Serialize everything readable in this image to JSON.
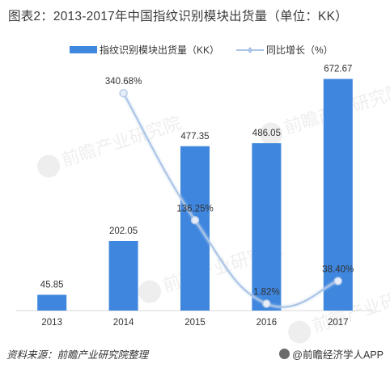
{
  "title": "图表2：2013-2017年中国指纹识别模块出货量（单位：KK）",
  "footer": {
    "source": "资料来源：前瞻产业研究院整理",
    "brand": "@前瞻经济学人APP"
  },
  "watermark": "前瞻产业研究院",
  "chart_data": {
    "type": "bar+line",
    "categories": [
      "2013",
      "2014",
      "2015",
      "2016",
      "2017"
    ],
    "series": [
      {
        "name": "指纹识别模块出货量（KK）",
        "type": "bar",
        "axis": "left",
        "values": [
          45.85,
          202.05,
          477.35,
          486.05,
          672.67
        ],
        "labels": [
          "45.85",
          "202.05",
          "477.35",
          "486.05",
          "672.67"
        ],
        "color": "#3f86de"
      },
      {
        "name": "同比增长（%）",
        "type": "line",
        "axis": "right",
        "values": [
          null,
          340.68,
          136.25,
          1.82,
          38.4
        ],
        "labels": [
          "",
          "340.68%",
          "136.25%",
          "1.82%",
          "38.40%"
        ],
        "color": "#a9c4e6"
      }
    ],
    "legend_position": "top",
    "grid": false
  }
}
